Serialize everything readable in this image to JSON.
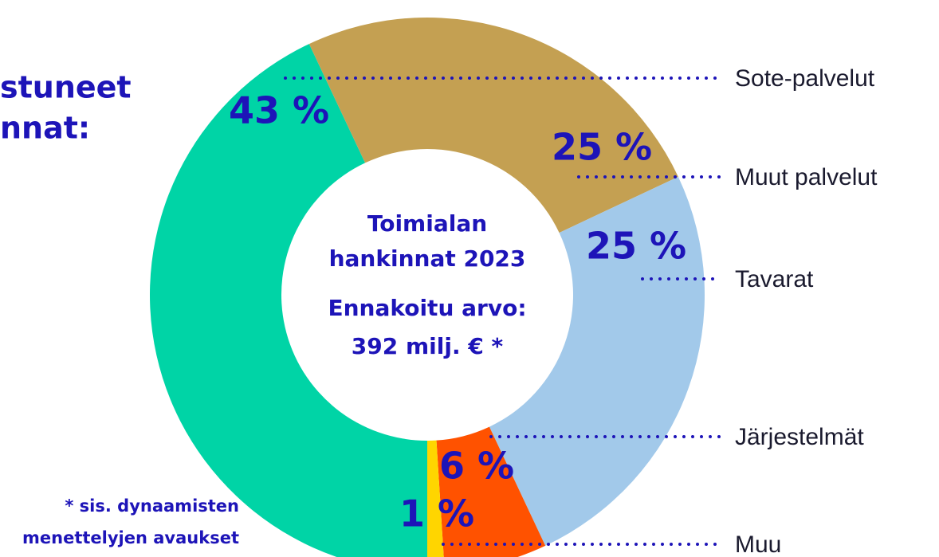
{
  "chart_data": {
    "type": "donut",
    "title_lines": [
      "stuneet",
      "nnat:"
    ],
    "center_text": [
      "Toimialan",
      "hankinnat 2023",
      "Ennakoitu arvo:",
      "392 milj. € *"
    ],
    "footnote": [
      "* sis. dynaamisten",
      "menettelyjen avaukset"
    ],
    "categories": [
      "Sote-palvelut",
      "Muut palvelut",
      "Tavarat",
      "Järjestelmät",
      "Muu"
    ],
    "values": [
      43,
      25,
      25,
      6,
      1
    ],
    "value_labels": [
      "43 %",
      "25 %",
      "25 %",
      "6 %",
      "1 %"
    ],
    "colors": [
      "#00d4a6",
      "#c4a052",
      "#a2c9ea",
      "#ff5200",
      "#ffd500"
    ]
  }
}
